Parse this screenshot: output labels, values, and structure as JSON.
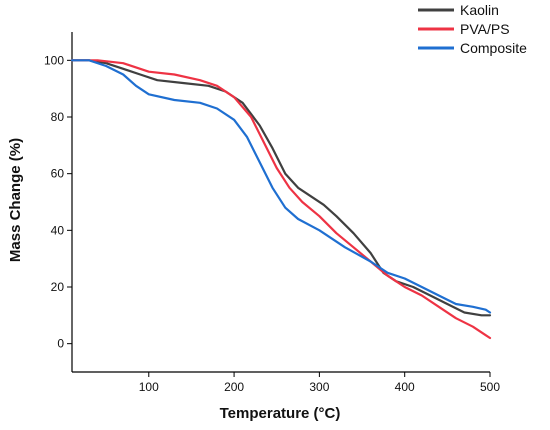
{
  "chart_data": {
    "type": "line",
    "xlabel": "Temperature (°C)",
    "ylabel": "Mass Change (%)",
    "xlim": [
      10,
      500
    ],
    "ylim": [
      -10,
      110
    ],
    "x_ticks": [
      100,
      200,
      300,
      400,
      500
    ],
    "y_ticks": [
      0,
      20,
      40,
      60,
      80,
      100
    ],
    "grid": false,
    "legend_position": "top-right",
    "series": [
      {
        "name": "Kaolin",
        "color": "#404040",
        "points": [
          [
            10,
            100
          ],
          [
            30,
            100
          ],
          [
            50,
            99
          ],
          [
            70,
            97
          ],
          [
            90,
            95
          ],
          [
            110,
            93
          ],
          [
            140,
            92
          ],
          [
            170,
            91
          ],
          [
            190,
            89
          ],
          [
            210,
            85
          ],
          [
            230,
            77
          ],
          [
            245,
            69
          ],
          [
            260,
            60
          ],
          [
            275,
            55
          ],
          [
            290,
            52
          ],
          [
            305,
            49
          ],
          [
            320,
            45
          ],
          [
            340,
            39
          ],
          [
            360,
            32
          ],
          [
            375,
            25
          ],
          [
            390,
            22
          ],
          [
            410,
            20
          ],
          [
            430,
            17
          ],
          [
            450,
            14
          ],
          [
            470,
            11
          ],
          [
            490,
            10
          ],
          [
            500,
            10
          ]
        ]
      },
      {
        "name": "PVA/PS",
        "color": "#ee3344",
        "points": [
          [
            10,
            100
          ],
          [
            40,
            100
          ],
          [
            70,
            99
          ],
          [
            100,
            96
          ],
          [
            130,
            95
          ],
          [
            160,
            93
          ],
          [
            180,
            91
          ],
          [
            200,
            87
          ],
          [
            220,
            80
          ],
          [
            235,
            71
          ],
          [
            250,
            62
          ],
          [
            265,
            55
          ],
          [
            280,
            50
          ],
          [
            300,
            45
          ],
          [
            320,
            39
          ],
          [
            340,
            34
          ],
          [
            360,
            29
          ],
          [
            380,
            24
          ],
          [
            400,
            20
          ],
          [
            420,
            17
          ],
          [
            440,
            13
          ],
          [
            460,
            9
          ],
          [
            480,
            6
          ],
          [
            495,
            3
          ],
          [
            500,
            2
          ]
        ]
      },
      {
        "name": "Composite",
        "color": "#1f6fd1",
        "points": [
          [
            10,
            100
          ],
          [
            30,
            100
          ],
          [
            50,
            98
          ],
          [
            70,
            95
          ],
          [
            85,
            91
          ],
          [
            100,
            88
          ],
          [
            130,
            86
          ],
          [
            160,
            85
          ],
          [
            180,
            83
          ],
          [
            200,
            79
          ],
          [
            215,
            73
          ],
          [
            230,
            64
          ],
          [
            245,
            55
          ],
          [
            260,
            48
          ],
          [
            275,
            44
          ],
          [
            300,
            40
          ],
          [
            330,
            34
          ],
          [
            360,
            29
          ],
          [
            380,
            25
          ],
          [
            400,
            23
          ],
          [
            420,
            20
          ],
          [
            440,
            17
          ],
          [
            460,
            14
          ],
          [
            480,
            13
          ],
          [
            495,
            12
          ],
          [
            500,
            11
          ]
        ]
      }
    ]
  }
}
